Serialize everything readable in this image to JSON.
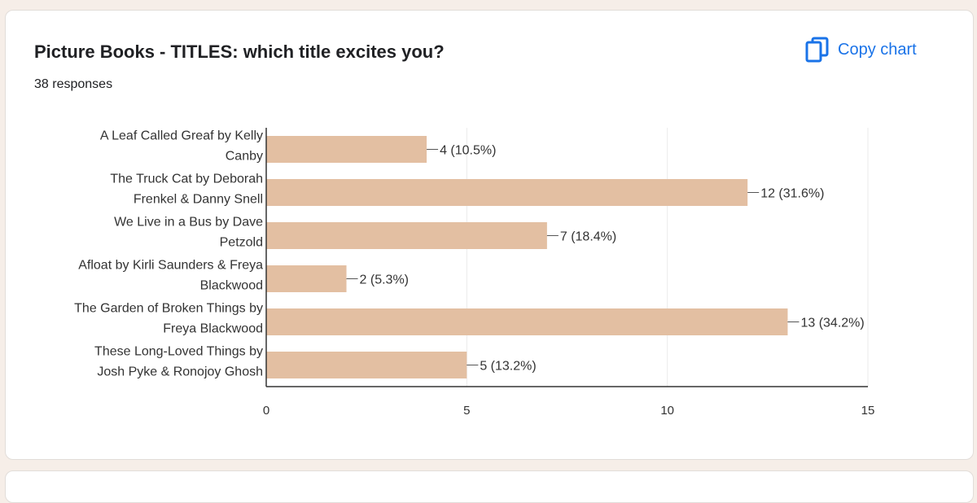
{
  "question": {
    "title": "Picture Books - TITLES: which title excites you?",
    "responses": "38 responses"
  },
  "actions": {
    "copy_label": "Copy chart",
    "copy_icon": "copy-icon"
  },
  "chart_data": {
    "type": "bar",
    "orientation": "horizontal",
    "categories": [
      [
        "A Leaf Called Greaf by Kelly",
        "Canby"
      ],
      [
        "The Truck Cat by Deborah",
        "Frenkel & Danny Snell"
      ],
      [
        "We Live in a Bus by Dave",
        "Petzold"
      ],
      [
        "Afloat by Kirli Saunders & Freya",
        "Blackwood"
      ],
      [
        "The Garden of Broken Things by",
        "Freya Blackwood"
      ],
      [
        "These Long-Loved Things by",
        "Josh Pyke & Ronojoy Ghosh"
      ]
    ],
    "values": [
      4,
      12,
      7,
      2,
      13,
      5
    ],
    "data_labels": [
      "4 (10.5%)",
      "12 (31.6%)",
      "7 (18.4%)",
      "2 (5.3%)",
      "13 (34.2%)",
      "5 (13.2%)"
    ],
    "xlim": [
      0,
      15
    ],
    "xticks": [
      0,
      5,
      10,
      15
    ],
    "grid": true,
    "bar_color": "#e3bfa2",
    "axis_color": "#333333",
    "grid_color": "#ebebeb"
  },
  "colors": {
    "accent": "#1a73e8",
    "background": "#f6eee8"
  }
}
